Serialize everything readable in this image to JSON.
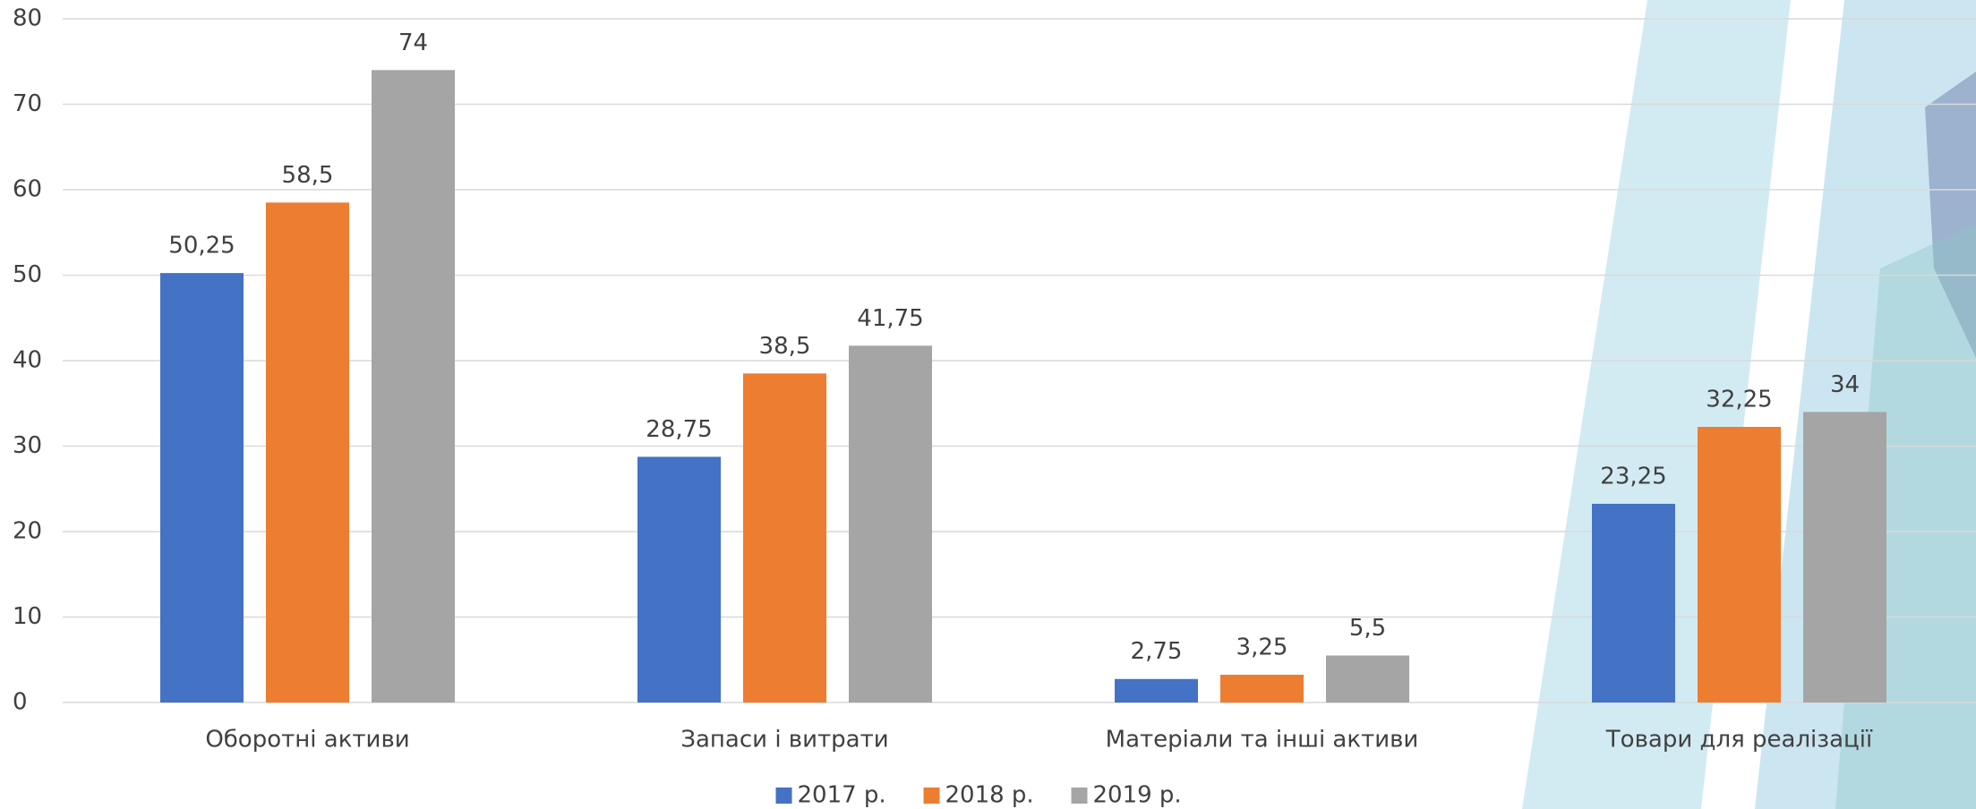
{
  "chart_data": {
    "type": "bar",
    "categories": [
      "Оборотні активи",
      "Запаси і витрати",
      "Матеріали та інші активи",
      "Товари для реалізації"
    ],
    "series": [
      {
        "name": "2017 р.",
        "color": "#4472c4",
        "values": [
          50.25,
          28.75,
          2.75,
          23.25
        ],
        "value_labels": [
          "50,25",
          "28,75",
          "2,75",
          "23,25"
        ]
      },
      {
        "name": "2018 р.",
        "color": "#ed7d31",
        "values": [
          58.5,
          38.5,
          3.25,
          32.25
        ],
        "value_labels": [
          "58,5",
          "38,5",
          "3,25",
          "32,25"
        ]
      },
      {
        "name": "2019 р.",
        "color": "#a5a5a5",
        "values": [
          74,
          41.75,
          5.5,
          34
        ],
        "value_labels": [
          "74",
          "41,75",
          "5,5",
          "34"
        ]
      }
    ],
    "ylim": [
      0,
      80
    ],
    "yticks": [
      0,
      10,
      20,
      30,
      40,
      50,
      60,
      70,
      80
    ],
    "grid": true,
    "legend": "bottom"
  }
}
